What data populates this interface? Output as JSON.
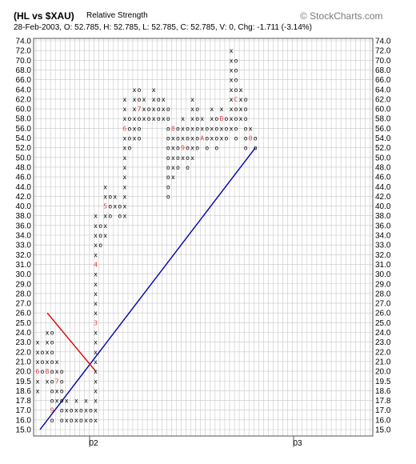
{
  "header": {
    "title": "(HL vs $XAU)",
    "subtitle": "Relative Strength",
    "info": "28-Feb-2003, O: 52.785, H: 52.785, L: 52.785, C: 52.785, V: 0, Chg: -1.711 (-3.14%)",
    "brand": "© StockCharts.com"
  },
  "colors": {
    "x_mark": "#000000",
    "o_mark": "#000000",
    "month_digit": "#e04040",
    "trend_up": "#0000aa",
    "trend_down": "#dd0000",
    "current_price": "#e04040",
    "grid": "#c8c8c8"
  },
  "chart_data": {
    "type": "point-and-figure",
    "y_axis": {
      "labels": [
        "15.0",
        "16.0",
        "17.0",
        "17.8",
        "18.6",
        "19.5",
        "20.0",
        "21.0",
        "22.0",
        "23.0",
        "24.0",
        "25.0",
        "26.0",
        "27.0",
        "28.0",
        "29.0",
        "30.0",
        "31.0",
        "32.0",
        "33.0",
        "34.0",
        "36.0",
        "38.0",
        "40.0",
        "42.0",
        "44.0",
        "46.0",
        "48.0",
        "50.0",
        "52.0",
        "54.0",
        "56.0",
        "58.0",
        "60.0",
        "62.0",
        "64.0",
        "66.0",
        "68.0",
        "70.0",
        "72.0",
        "74.0"
      ],
      "current_value": "52.0",
      "both_sides": true
    },
    "x_axis": {
      "labels": [
        "02",
        "03"
      ]
    },
    "columns": [
      {
        "type": "X",
        "low": "18.6",
        "high": "23.0"
      },
      {
        "type": "O",
        "low": "20.0",
        "high": "22.0"
      },
      {
        "type": "X",
        "low": "19.5",
        "high": "24.0"
      },
      {
        "type": "O",
        "low": "16.0",
        "high": "24.0"
      },
      {
        "type": "X",
        "low": "17.8",
        "high": "21.0"
      },
      {
        "type": "O",
        "low": "16.0",
        "high": "20.0"
      },
      {
        "type": "X",
        "low": "16.0",
        "high": "17.8"
      },
      {
        "type": "O",
        "low": "16.0",
        "high": "17.0"
      },
      {
        "type": "X",
        "low": "16.0",
        "high": "17.8"
      },
      {
        "type": "O",
        "low": "16.0",
        "high": "17.0"
      },
      {
        "type": "X",
        "low": "16.0",
        "high": "17.8"
      },
      {
        "type": "O",
        "low": "16.0",
        "high": "17.0"
      },
      {
        "type": "X",
        "low": "16.0",
        "high": "38.0"
      },
      {
        "type": "O",
        "low": "33.0",
        "high": "36.0"
      },
      {
        "type": "X",
        "low": "34.0",
        "high": "44.0"
      },
      {
        "type": "O",
        "low": "38.0",
        "high": "42.0"
      },
      {
        "type": "X",
        "low": "40.0",
        "high": "42.0"
      },
      {
        "type": "O",
        "low": "38.0",
        "high": "40.0"
      },
      {
        "type": "X",
        "low": "38.0",
        "high": "62.0"
      },
      {
        "type": "O",
        "low": "52.0",
        "high": "58.0"
      },
      {
        "type": "X",
        "low": "54.0",
        "high": "64.0"
      },
      {
        "type": "O",
        "low": "54.0",
        "high": "64.0"
      },
      {
        "type": "X",
        "low": "58.0",
        "high": "62.0"
      },
      {
        "type": "O",
        "low": "58.0",
        "high": "60.0"
      },
      {
        "type": "X",
        "low": "58.0",
        "high": "64.0"
      },
      {
        "type": "O",
        "low": "58.0",
        "high": "62.0"
      },
      {
        "type": "X",
        "low": "58.0",
        "high": "62.0"
      },
      {
        "type": "O",
        "low": "42.0",
        "high": "60.0"
      },
      {
        "type": "X",
        "low": "46.0",
        "high": "56.0"
      },
      {
        "type": "O",
        "low": "48.0",
        "high": "56.0"
      },
      {
        "type": "X",
        "low": "50.0",
        "high": "58.0"
      },
      {
        "type": "O",
        "low": "48.0",
        "high": "56.0"
      },
      {
        "type": "X",
        "low": "50.0",
        "high": "62.0"
      },
      {
        "type": "O",
        "low": "52.0",
        "high": "60.0"
      },
      {
        "type": "X",
        "low": "54.0",
        "high": "58.0"
      },
      {
        "type": "O",
        "low": "52.0",
        "high": "56.0"
      },
      {
        "type": "X",
        "low": "54.0",
        "high": "60.0"
      },
      {
        "type": "O",
        "low": "52.0",
        "high": "58.0"
      },
      {
        "type": "X",
        "low": "54.0",
        "high": "60.0"
      },
      {
        "type": "O",
        "low": "54.0",
        "high": "58.0"
      },
      {
        "type": "X",
        "low": "56.0",
        "high": "72.0"
      },
      {
        "type": "O",
        "low": "54.0",
        "high": "70.0"
      },
      {
        "type": "X",
        "low": "58.0",
        "high": "64.0"
      },
      {
        "type": "O",
        "low": "52.0",
        "high": "62.0"
      },
      {
        "type": "X",
        "low": "54.0",
        "high": "56.0"
      },
      {
        "type": "O",
        "low": "52.0",
        "high": "54.0"
      }
    ],
    "month_markers": [
      {
        "col": 0,
        "level": "20.0",
        "digit": "6"
      },
      {
        "col": 2,
        "level": "20.0",
        "digit": "8"
      },
      {
        "col": 3,
        "level": "17.0",
        "digit": "9"
      },
      {
        "col": 4,
        "level": "19.5",
        "digit": "7"
      },
      {
        "col": 9,
        "level": "17.8",
        "digit": "1"
      },
      {
        "col": 12,
        "level": "25.0",
        "digit": "3"
      },
      {
        "col": 12,
        "level": "31.0",
        "digit": "4"
      },
      {
        "col": 14,
        "level": "40.0",
        "digit": "5"
      },
      {
        "col": 18,
        "level": "56.0",
        "digit": "6"
      },
      {
        "col": 21,
        "level": "60.0",
        "digit": "7"
      },
      {
        "col": 28,
        "level": "56.0",
        "digit": "8"
      },
      {
        "col": 30,
        "level": "52.0",
        "digit": "9"
      },
      {
        "col": 34,
        "level": "54.0",
        "digit": "A"
      },
      {
        "col": 38,
        "level": "58.0",
        "digit": "B"
      },
      {
        "col": 41,
        "level": "62.0",
        "digit": "C"
      },
      {
        "col": 42,
        "level": "56.0",
        "digit": "2"
      },
      {
        "col": 44,
        "level": "54.0",
        "digit": "0"
      }
    ],
    "trend_lines": [
      {
        "color": "up",
        "from": {
          "col": 0.5,
          "level": "15.0"
        },
        "to": {
          "col": 45,
          "level": "52.0"
        }
      },
      {
        "color": "down",
        "from": {
          "col": 2,
          "level": "26.0"
        },
        "to": {
          "col": 12,
          "level": "20.0"
        }
      }
    ]
  }
}
